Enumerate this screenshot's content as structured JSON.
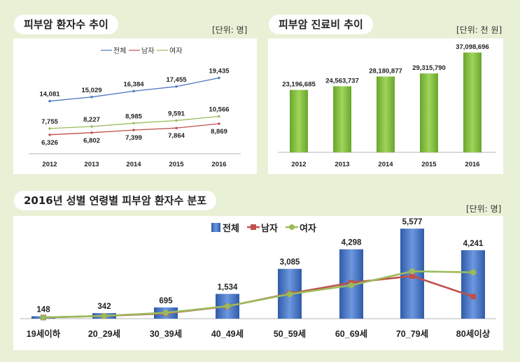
{
  "panels": {
    "patients_title": "피부암 환자수 추이",
    "patients_unit": "[단위: 명]",
    "cost_title": "피부암 진료비 추이",
    "cost_unit": "[단위: 천 원]",
    "dist_title": "2016년 성별 연령별 피부암 환자수 분포",
    "dist_unit": "[단위: 명]"
  },
  "colors": {
    "total": "#4a76c1",
    "male": "#c0504d",
    "female": "#9bbb59",
    "bar_green": "#7db83a",
    "bar_blue": "#3f6fc6",
    "background": "#e8f1d6"
  },
  "chart_data": [
    {
      "type": "line",
      "title": "피부암 환자수 추이",
      "categories": [
        "2012",
        "2013",
        "2014",
        "2015",
        "2016"
      ],
      "series": [
        {
          "name": "전체",
          "values": [
            14081,
            15029,
            16384,
            17455,
            19435
          ],
          "labels": [
            "14,081",
            "15,029",
            "16,384",
            "17,455",
            "19,435"
          ]
        },
        {
          "name": "남자",
          "values": [
            6326,
            6802,
            7399,
            7864,
            8869
          ],
          "labels": [
            "6,326",
            "6,802",
            "7,399",
            "7,864",
            "8,869"
          ]
        },
        {
          "name": "여자",
          "values": [
            7755,
            8227,
            8985,
            9591,
            10566
          ],
          "labels": [
            "7,755",
            "8,227",
            "8,985",
            "9,591",
            "10,566"
          ]
        }
      ],
      "legend": "top-center",
      "grid": false
    },
    {
      "type": "bar",
      "title": "피부암 진료비 추이",
      "categories": [
        "2012",
        "2013",
        "2014",
        "2015",
        "2016"
      ],
      "values": [
        23196685,
        24563737,
        28180877,
        29315790,
        37098696
      ],
      "labels": [
        "23,196,685",
        "24,563,737",
        "28,180,877",
        "29,315,790",
        "37,098,696"
      ],
      "grid": false
    },
    {
      "type": "bar",
      "title": "2016년 성별 연령별 피부암 환자수 분포",
      "categories": [
        "19세이하",
        "20_29세",
        "30_39세",
        "40_49세",
        "50_59세",
        "60_69세",
        "70_79세",
        "80세이상"
      ],
      "series": [
        {
          "name": "전체",
          "type": "bar",
          "values": [
            148,
            342,
            695,
            1534,
            3085,
            4298,
            5577,
            4241
          ],
          "labels": [
            "148",
            "342",
            "695",
            "1,534",
            "3,085",
            "4,298",
            "5,577",
            "4,241"
          ]
        },
        {
          "name": "남자",
          "type": "line",
          "values": [
            72,
            170,
            330,
            760,
            1560,
            2230,
            2640,
            1370
          ]
        },
        {
          "name": "여자",
          "type": "line",
          "values": [
            76,
            172,
            365,
            774,
            1525,
            2068,
            2937,
            2871
          ]
        }
      ],
      "legend": "top-center",
      "grid": false
    }
  ]
}
